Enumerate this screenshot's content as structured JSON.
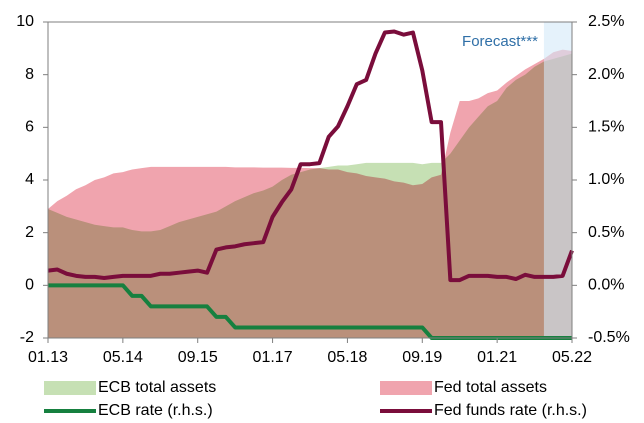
{
  "chart_data": {
    "type": "line",
    "categories": [
      "01.13",
      null,
      null,
      null,
      null,
      null,
      null,
      null,
      "05.14",
      null,
      null,
      null,
      null,
      null,
      null,
      null,
      "09.15",
      null,
      null,
      null,
      null,
      null,
      null,
      null,
      "01.17",
      null,
      null,
      null,
      null,
      null,
      null,
      null,
      "05.18",
      null,
      null,
      null,
      null,
      null,
      null,
      null,
      "09.19",
      null,
      null,
      null,
      null,
      null,
      null,
      null,
      "01.21",
      null,
      null,
      null,
      null,
      null,
      null,
      null,
      "05.22"
    ],
    "ylim": [
      -2,
      10
    ],
    "yticks": [
      -2,
      0,
      2,
      4,
      6,
      8,
      10
    ],
    "y2lim": [
      -0.5,
      2.5
    ],
    "y2ticks": [
      {
        "value": -0.5,
        "label": "-0.5%"
      },
      {
        "value": 0,
        "label": "0.0%"
      },
      {
        "value": 0.5,
        "label": "0.5%"
      },
      {
        "value": 1,
        "label": "1.0%"
      },
      {
        "value": 1.5,
        "label": "1.5%"
      },
      {
        "value": 2,
        "label": "2.0%"
      },
      {
        "value": 2.5,
        "label": "2.5%"
      }
    ],
    "forecast": {
      "text": "Forecast***",
      "from_index": 53,
      "color": "#d3eaf8"
    },
    "series": [
      {
        "name": "ECB total assets",
        "type": "area",
        "color": "#c6e0b4",
        "axis": "y",
        "values": [
          2.9,
          2.75,
          2.6,
          2.5,
          2.4,
          2.3,
          2.25,
          2.2,
          2.2,
          2.1,
          2.05,
          2.05,
          2.1,
          2.25,
          2.4,
          2.5,
          2.6,
          2.7,
          2.8,
          3.0,
          3.2,
          3.35,
          3.5,
          3.6,
          3.75,
          4.0,
          4.2,
          4.3,
          4.4,
          4.45,
          4.5,
          4.55,
          4.55,
          4.6,
          4.65,
          4.65,
          4.65,
          4.65,
          4.65,
          4.65,
          4.6,
          4.65,
          4.65,
          5.0,
          5.5,
          6.0,
          6.4,
          6.8,
          7.0,
          7.5,
          7.8,
          8.0,
          8.3,
          8.5,
          8.6,
          8.7,
          8.8
        ]
      },
      {
        "name": "Fed total assets",
        "type": "area",
        "color": "#f0a4ae",
        "axis": "y",
        "values": [
          2.9,
          3.2,
          3.4,
          3.65,
          3.8,
          4.0,
          4.1,
          4.25,
          4.3,
          4.4,
          4.45,
          4.5,
          4.5,
          4.5,
          4.5,
          4.5,
          4.5,
          4.5,
          4.5,
          4.5,
          4.48,
          4.48,
          4.48,
          4.47,
          4.47,
          4.47,
          4.46,
          4.46,
          4.45,
          4.45,
          4.4,
          4.4,
          4.3,
          4.25,
          4.15,
          4.1,
          4.05,
          3.95,
          3.9,
          3.8,
          3.85,
          4.1,
          4.2,
          5.8,
          7.0,
          7.0,
          7.1,
          7.3,
          7.4,
          7.7,
          7.95,
          8.2,
          8.4,
          8.6,
          8.85,
          8.95,
          8.9
        ]
      },
      {
        "name": "ECB rate (r.h.s.)",
        "type": "line",
        "color": "#16803f",
        "axis": "y2",
        "values": [
          0,
          0,
          0,
          0,
          0,
          0,
          0,
          0,
          0,
          -0.1,
          -0.1,
          -0.2,
          -0.2,
          -0.2,
          -0.2,
          -0.2,
          -0.2,
          -0.2,
          -0.3,
          -0.3,
          -0.4,
          -0.4,
          -0.4,
          -0.4,
          -0.4,
          -0.4,
          -0.4,
          -0.4,
          -0.4,
          -0.4,
          -0.4,
          -0.4,
          -0.4,
          -0.4,
          -0.4,
          -0.4,
          -0.4,
          -0.4,
          -0.4,
          -0.4,
          -0.4,
          -0.5,
          -0.5,
          -0.5,
          -0.5,
          -0.5,
          -0.5,
          -0.5,
          -0.5,
          -0.5,
          -0.5,
          -0.5,
          -0.5,
          -0.5,
          -0.5,
          -0.5,
          -0.5
        ]
      },
      {
        "name": "Fed funds rate (r.h.s.)",
        "type": "line",
        "color": "#7a0d3b",
        "axis": "y2",
        "values": [
          0.14,
          0.15,
          0.11,
          0.09,
          0.08,
          0.08,
          0.07,
          0.08,
          0.09,
          0.09,
          0.09,
          0.09,
          0.11,
          0.11,
          0.12,
          0.13,
          0.14,
          0.12,
          0.34,
          0.36,
          0.37,
          0.39,
          0.4,
          0.41,
          0.65,
          0.79,
          0.91,
          1.15,
          1.15,
          1.16,
          1.41,
          1.51,
          1.7,
          1.91,
          1.95,
          2.2,
          2.4,
          2.41,
          2.38,
          2.4,
          2.04,
          1.55,
          1.55,
          0.05,
          0.05,
          0.09,
          0.09,
          0.09,
          0.08,
          0.08,
          0.06,
          0.1,
          0.08,
          0.08,
          0.08,
          0.09,
          0.33
        ]
      }
    ]
  }
}
